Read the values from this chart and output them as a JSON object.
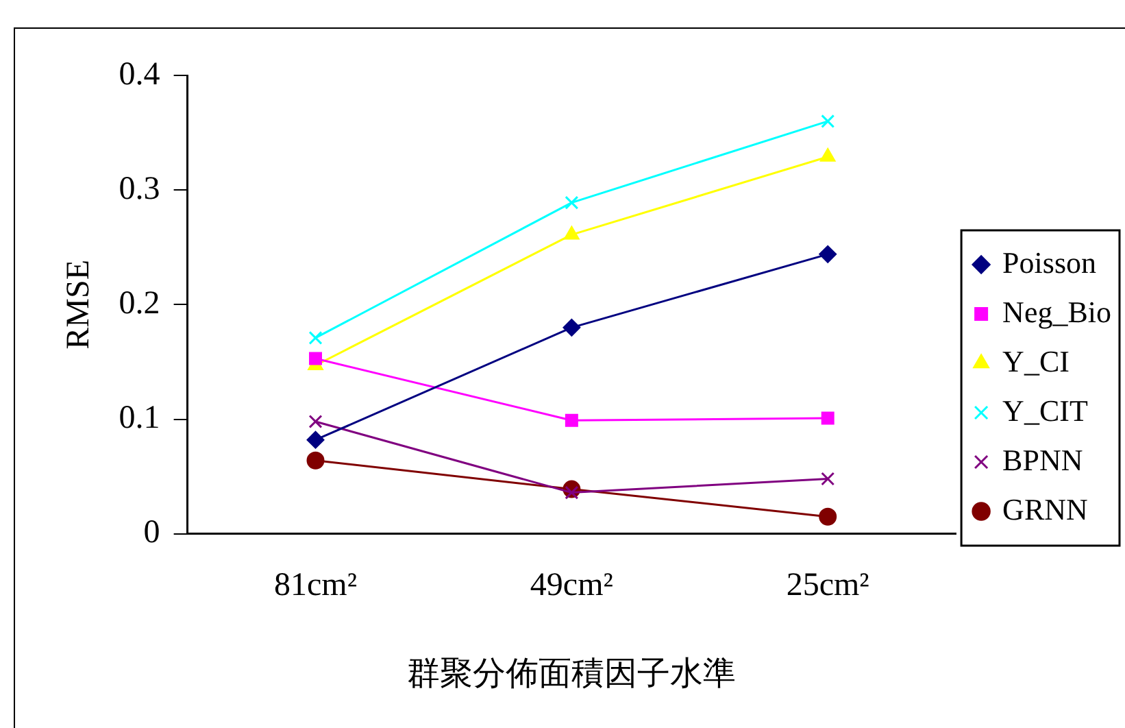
{
  "chart_data": {
    "type": "line",
    "xlabel": "群聚分佈面積因子水準",
    "ylabel": "RMSE",
    "categories": [
      "81cm²",
      "49cm²",
      "25cm²"
    ],
    "ylim": [
      0,
      0.4
    ],
    "yticks": [
      0,
      0.1,
      0.2,
      0.3,
      0.4
    ],
    "grid": false,
    "legend": "right",
    "line_style": "solid",
    "series": [
      {
        "name": "Poisson",
        "color": "#000080",
        "marker": "diamond",
        "values": [
          0.082,
          0.18,
          0.244
        ]
      },
      {
        "name": "Neg_Bio",
        "color": "#ff00ff",
        "marker": "square",
        "values": [
          0.153,
          0.099,
          0.101
        ]
      },
      {
        "name": "Y_CI",
        "color": "#ffff00",
        "marker": "triangle",
        "values": [
          0.147,
          0.261,
          0.329
        ]
      },
      {
        "name": "Y_CIT",
        "color": "#00ffff",
        "marker": "cross",
        "values": [
          0.171,
          0.289,
          0.36
        ]
      },
      {
        "name": "BPNN",
        "color": "#800080",
        "marker": "cross",
        "values": [
          0.098,
          0.036,
          0.048
        ]
      },
      {
        "name": "GRNN",
        "color": "#800000",
        "marker": "circle",
        "values": [
          0.064,
          0.039,
          0.015
        ]
      }
    ]
  }
}
